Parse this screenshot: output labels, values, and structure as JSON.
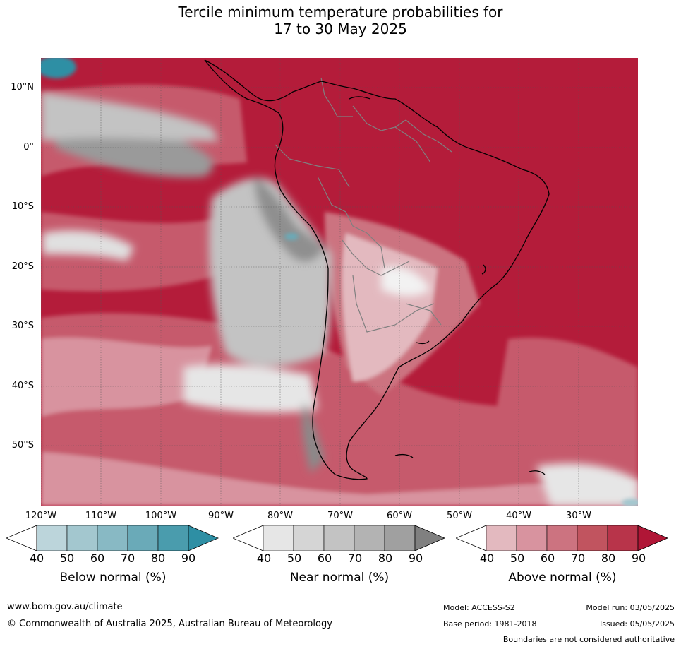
{
  "title": {
    "line1": "Tercile minimum temperature probabilities for",
    "line2": "17 to 30 May 2025"
  },
  "map": {
    "lat_labels": [
      "10°N",
      "0°",
      "10°S",
      "20°S",
      "30°S",
      "40°S",
      "50°S"
    ],
    "lon_labels": [
      "120°W",
      "110°W",
      "100°W",
      "90°W",
      "80°W",
      "70°W",
      "60°W",
      "50°W",
      "40°W",
      "30°W"
    ],
    "colors": {
      "above_dominant": "#b41c3a",
      "above_mid": "#c65a6c",
      "above_light": "#d8939f",
      "near_light": "#e6e6e6",
      "near_mid": "#c3c3c3",
      "near_dark": "#8a8a8a",
      "below_dark": "#2e8fa4",
      "coastline": "#000000",
      "borders": "#808080"
    }
  },
  "colorbars": {
    "tick_labels": [
      "40",
      "50",
      "60",
      "70",
      "80",
      "90"
    ],
    "below": {
      "title": "Below normal (%)",
      "colors": [
        "#ffffff",
        "#bcd5db",
        "#a3c7cf",
        "#88b9c4",
        "#6aaab8",
        "#4a9cad",
        "#2e8fa4"
      ]
    },
    "near": {
      "title": "Near normal (%)",
      "colors": [
        "#ffffff",
        "#e6e6e6",
        "#d5d5d5",
        "#c3c3c3",
        "#b3b3b3",
        "#a0a0a0",
        "#808080"
      ]
    },
    "above": {
      "title": "Above normal (%)",
      "colors": [
        "#ffffff",
        "#e3b9bf",
        "#d8939f",
        "#cc7380",
        "#c1545f",
        "#b8344a",
        "#b01636"
      ]
    }
  },
  "footer": {
    "url": "www.bom.gov.au/climate",
    "copyright": "© Commonwealth of Australia 2025, Australian Bureau of Meteorology",
    "model": "Model: ACCESS-S2",
    "model_run": "Model run: 03/05/2025",
    "base_period": "Base period: 1981-2018",
    "issued": "Issued: 05/05/2025",
    "boundaries": "Boundaries are not considered authoritative"
  }
}
